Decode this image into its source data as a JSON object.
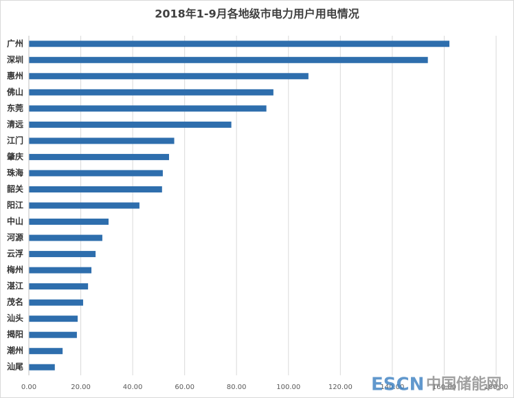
{
  "chart_data": {
    "type": "hbar",
    "title": "2018年1-9月各地级市电力用户用电情况",
    "categories": [
      "广州",
      "深圳",
      "惠州",
      "佛山",
      "东莞",
      "清远",
      "江门",
      "肇庆",
      "珠海",
      "韶关",
      "阳江",
      "中山",
      "河源",
      "云浮",
      "梅州",
      "湛江",
      "茂名",
      "汕头",
      "揭阳",
      "潮州",
      "汕尾"
    ],
    "values": [
      162,
      153.7,
      107.7,
      94.2,
      91.5,
      78,
      56,
      54,
      51.6,
      51.3,
      42.6,
      30.7,
      28.3,
      25.7,
      24.1,
      22.8,
      20.9,
      18.8,
      18.5,
      13,
      10
    ],
    "color": "#2e6ead",
    "xlim": [
      0,
      180
    ],
    "xticks": [
      {
        "value": 0,
        "label": "0.00"
      },
      {
        "value": 20,
        "label": "20.00"
      },
      {
        "value": 40,
        "label": "40.00"
      },
      {
        "value": 60,
        "label": "60.00"
      },
      {
        "value": 80,
        "label": "80.00"
      },
      {
        "value": 100,
        "label": "100.00"
      },
      {
        "value": 120,
        "label": "120.00"
      },
      {
        "value": 140,
        "label": "140.00"
      },
      {
        "value": 160,
        "label": "160.00"
      },
      {
        "value": 180,
        "label": "180.00"
      }
    ],
    "grid": true,
    "annotations": [
      "ESCN",
      "中国储能网"
    ]
  }
}
